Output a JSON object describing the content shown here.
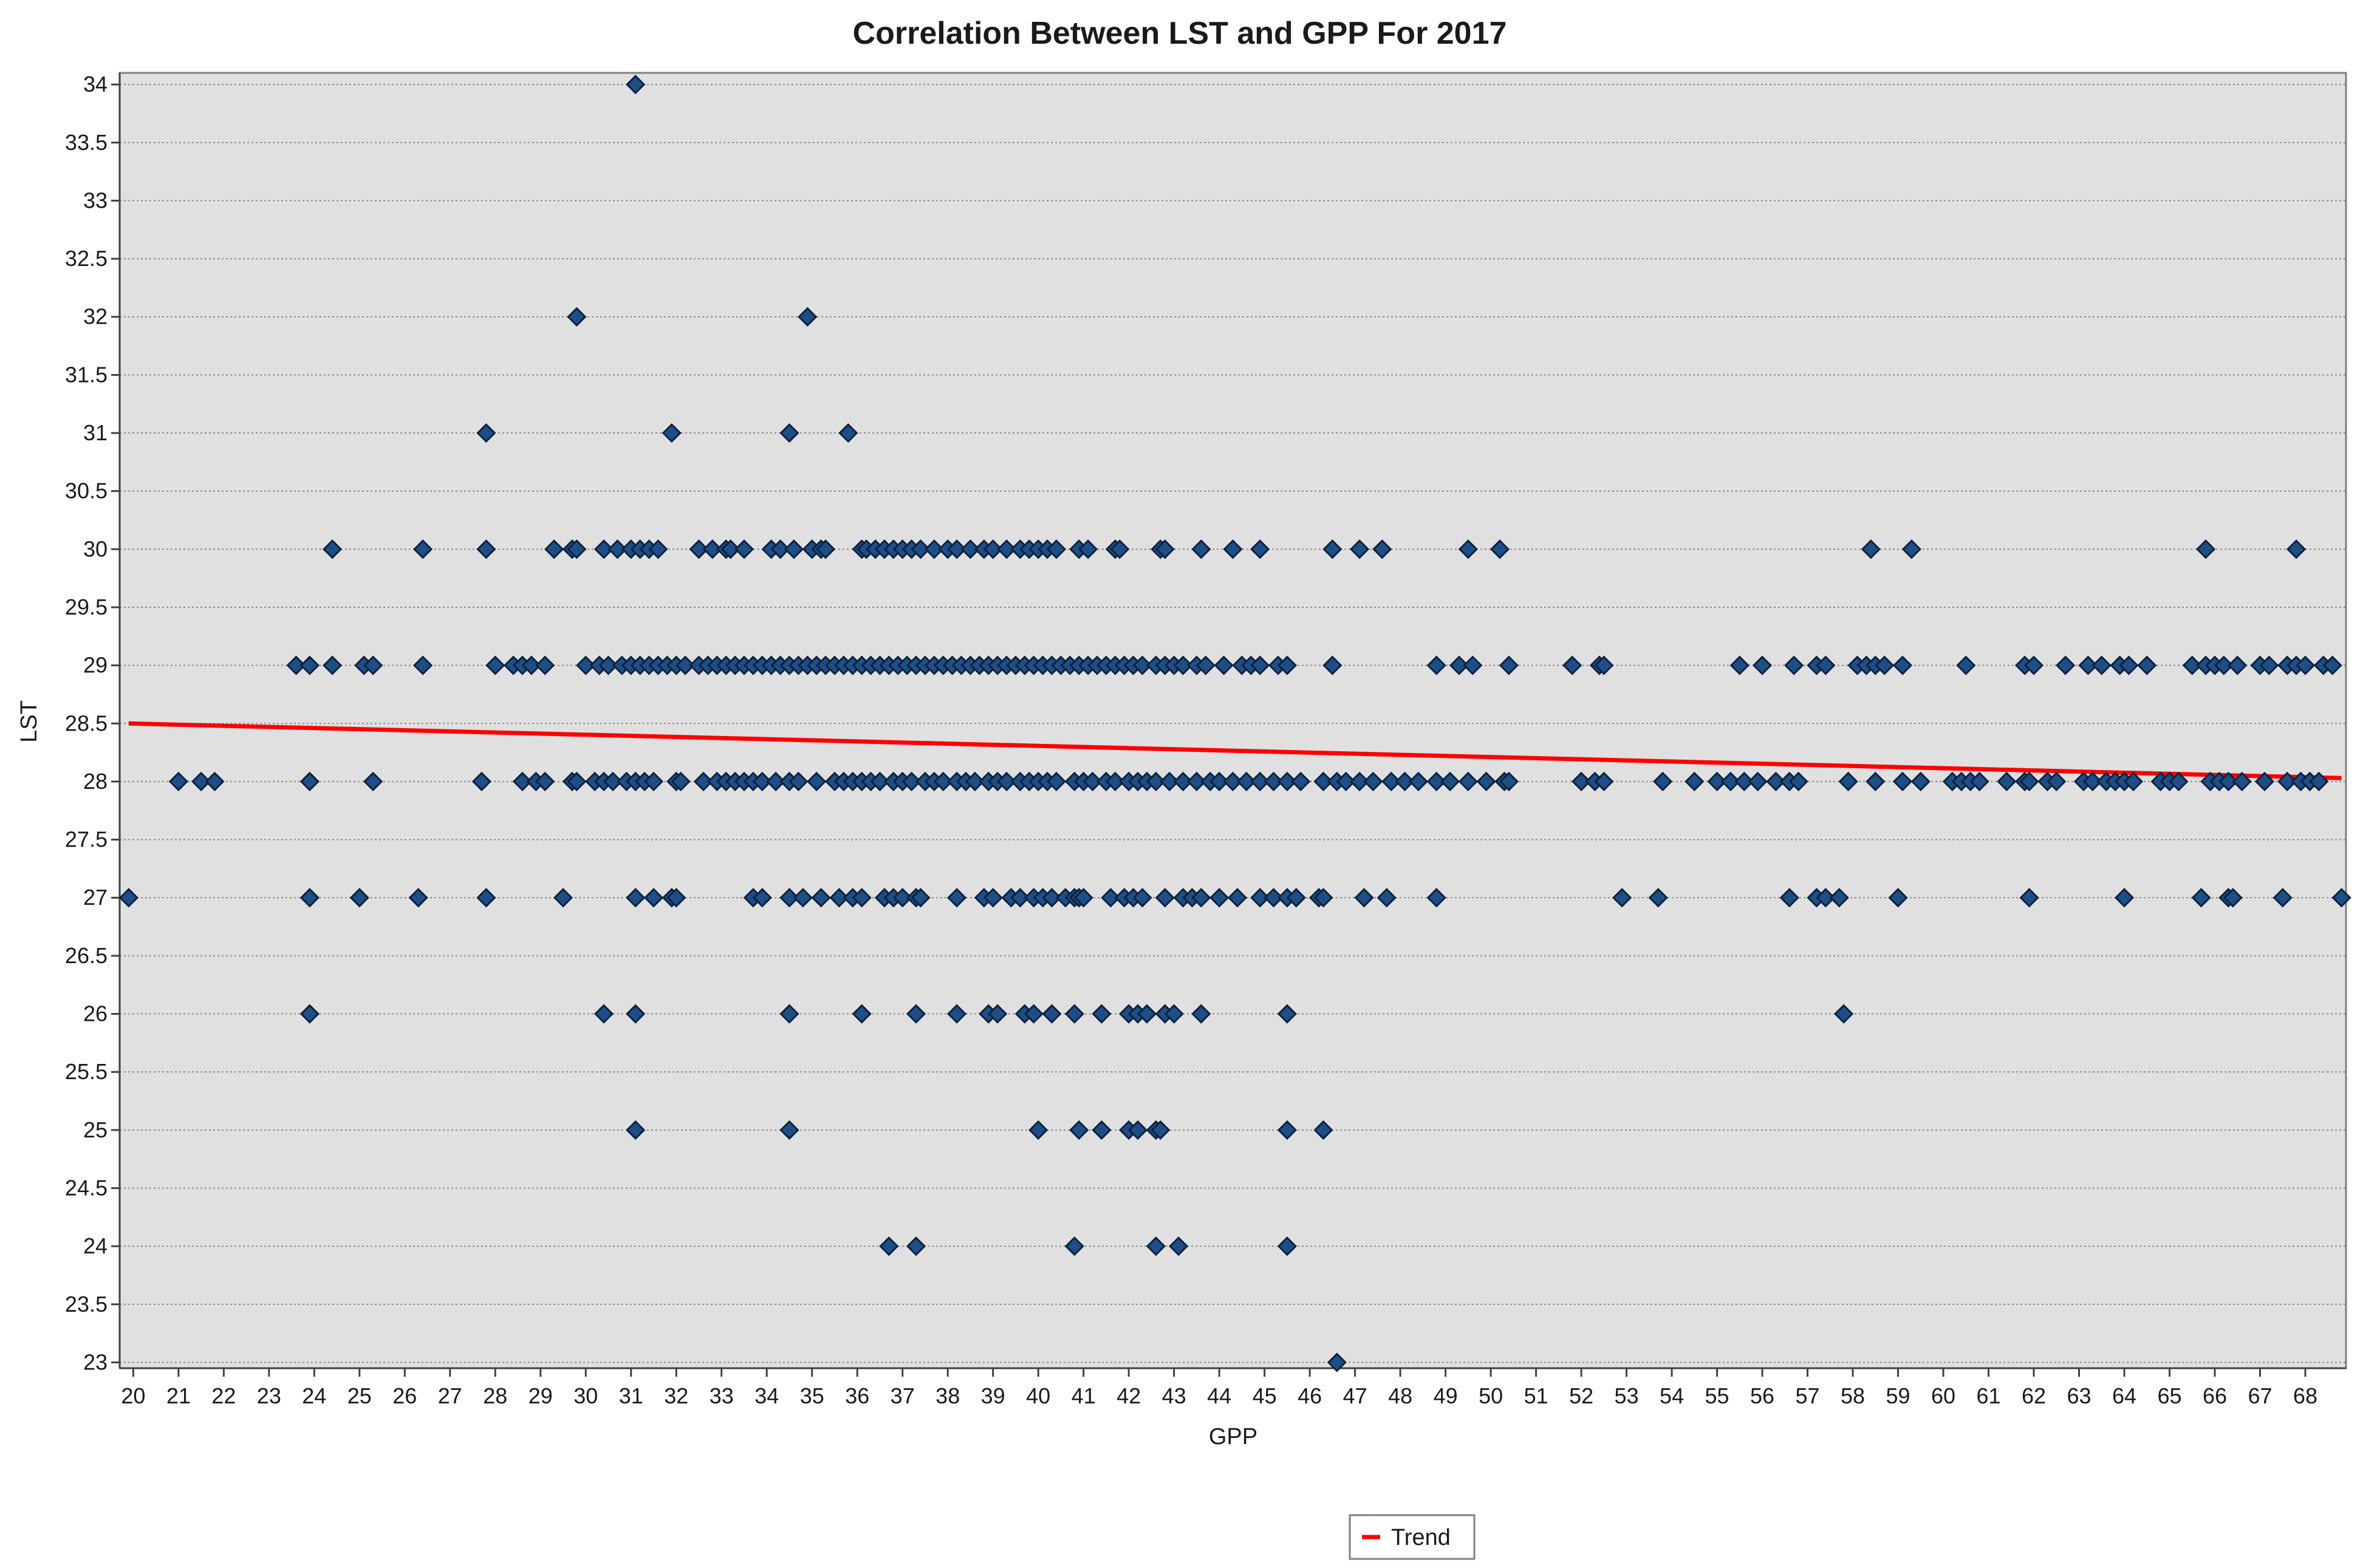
{
  "chart_data": {
    "type": "scatter",
    "title": "Correlation Between LST and GPP For 2017",
    "xlabel": "GPP",
    "ylabel": "LST",
    "xlim": [
      19.7,
      68.9
    ],
    "ylim": [
      22.95,
      34.1
    ],
    "grid": "horizontal dashed",
    "legend_position": "bottom-center",
    "x_ticks": [
      20,
      21,
      22,
      23,
      24,
      25,
      26,
      27,
      28,
      29,
      30,
      31,
      32,
      33,
      34,
      35,
      36,
      37,
      38,
      39,
      40,
      41,
      42,
      43,
      44,
      45,
      46,
      47,
      48,
      49,
      50,
      51,
      52,
      53,
      54,
      55,
      56,
      57,
      58,
      59,
      60,
      61,
      62,
      63,
      64,
      65,
      66,
      67,
      68
    ],
    "y_ticks": [
      "23",
      "23.5",
      "24",
      "24.5",
      "25",
      "25.5",
      "26",
      "26.5",
      "27",
      "27.5",
      "28",
      "28.5",
      "29",
      "29.5",
      "30",
      "30.5",
      "31",
      "31.5",
      "32",
      "32.5",
      "33",
      "33.5",
      "34"
    ],
    "marker_color": "#1f4e86",
    "marker_edge": "#0b2240",
    "plot_background": "#e0e0e0",
    "trend_color": "#ff0000",
    "series": [
      {
        "kind": "scatter",
        "values_by_lst": {
          "34": [
            31.1
          ],
          "32": [
            29.8,
            34.9
          ],
          "31": [
            27.8,
            31.9,
            34.5,
            35.8
          ],
          "30": [
            24.4,
            26.4,
            27.8,
            29.3,
            29.7,
            29.8,
            30.4,
            30.7,
            31.0,
            31.2,
            31.4,
            31.6,
            32.5,
            32.8,
            33.1,
            33.2,
            33.5,
            34.1,
            34.3,
            34.6,
            35.0,
            35.2,
            35.3,
            36.1,
            36.2,
            36.4,
            36.6,
            36.8,
            37.0,
            37.2,
            37.4,
            37.7,
            38.0,
            38.2,
            38.5,
            38.8,
            39.0,
            39.3,
            39.6,
            39.8,
            40.0,
            40.2,
            40.4,
            40.9,
            41.1,
            41.7,
            41.8,
            42.7,
            42.8,
            43.6,
            44.3,
            44.9,
            46.5,
            47.1,
            47.6,
            49.5,
            50.2,
            58.4,
            59.3,
            65.8,
            67.8
          ],
          "29": [
            23.6,
            23.9,
            24.4,
            25.1,
            25.3,
            26.4,
            28.0,
            28.4,
            28.6,
            28.8,
            29.1,
            30.0,
            30.3,
            30.5,
            30.8,
            31.0,
            31.2,
            31.4,
            31.6,
            31.8,
            32.0,
            32.2,
            32.5,
            32.7,
            32.9,
            33.1,
            33.3,
            33.5,
            33.7,
            33.9,
            34.1,
            34.3,
            34.5,
            34.7,
            34.9,
            35.1,
            35.3,
            35.5,
            35.7,
            35.9,
            36.1,
            36.3,
            36.5,
            36.7,
            36.9,
            37.1,
            37.3,
            37.5,
            37.7,
            37.9,
            38.1,
            38.3,
            38.5,
            38.7,
            38.9,
            39.1,
            39.3,
            39.5,
            39.7,
            39.9,
            40.1,
            40.3,
            40.5,
            40.7,
            40.9,
            41.1,
            41.3,
            41.5,
            41.7,
            41.9,
            42.1,
            42.3,
            42.6,
            42.8,
            43.0,
            43.2,
            43.5,
            43.7,
            44.1,
            44.5,
            44.7,
            44.9,
            45.3,
            45.5,
            46.5,
            48.8,
            49.3,
            49.6,
            50.4,
            51.8,
            52.4,
            52.5,
            55.5,
            56.0,
            56.7,
            57.2,
            57.4,
            58.1,
            58.3,
            58.5,
            58.7,
            59.1,
            60.5,
            61.8,
            62.0,
            62.7,
            63.2,
            63.5,
            63.9,
            64.1,
            64.5,
            65.5,
            65.8,
            66.0,
            66.2,
            66.5,
            67.0,
            67.2,
            67.6,
            67.8,
            68.0,
            68.4,
            68.6
          ],
          "28": [
            21.0,
            21.5,
            21.8,
            23.9,
            25.3,
            27.7,
            28.6,
            28.9,
            29.1,
            29.7,
            29.8,
            30.2,
            30.4,
            30.6,
            30.9,
            31.1,
            31.3,
            31.5,
            32.0,
            32.1,
            32.6,
            32.9,
            33.1,
            33.3,
            33.5,
            33.7,
            33.9,
            34.2,
            34.5,
            34.7,
            35.1,
            35.5,
            35.7,
            35.9,
            36.1,
            36.3,
            36.5,
            36.8,
            37.0,
            37.2,
            37.5,
            37.7,
            37.9,
            38.2,
            38.4,
            38.6,
            38.9,
            39.1,
            39.3,
            39.6,
            39.8,
            40.0,
            40.2,
            40.4,
            40.8,
            41.0,
            41.2,
            41.5,
            41.7,
            42.0,
            42.2,
            42.4,
            42.6,
            42.9,
            43.2,
            43.5,
            43.8,
            44.0,
            44.3,
            44.6,
            44.9,
            45.2,
            45.5,
            45.8,
            46.3,
            46.6,
            46.8,
            47.1,
            47.4,
            47.8,
            48.1,
            48.4,
            48.8,
            49.1,
            49.5,
            49.9,
            50.3,
            50.4,
            52.0,
            52.3,
            52.5,
            53.8,
            54.5,
            55.0,
            55.3,
            55.6,
            55.9,
            56.3,
            56.6,
            56.8,
            57.9,
            58.5,
            59.1,
            59.5,
            60.2,
            60.4,
            60.6,
            60.8,
            61.4,
            61.8,
            61.9,
            62.3,
            62.5,
            63.1,
            63.3,
            63.6,
            63.8,
            64.0,
            64.2,
            64.8,
            65.0,
            65.2,
            65.9,
            66.1,
            66.3,
            66.6,
            67.1,
            67.6,
            67.9,
            68.1,
            68.3
          ],
          "27": [
            19.9,
            23.9,
            25.0,
            26.3,
            27.8,
            29.5,
            31.1,
            31.5,
            31.9,
            32.0,
            33.7,
            33.9,
            34.5,
            34.8,
            35.2,
            35.6,
            35.9,
            36.1,
            36.6,
            36.8,
            37.0,
            37.3,
            37.4,
            38.2,
            38.8,
            39.0,
            39.4,
            39.6,
            39.9,
            40.1,
            40.3,
            40.6,
            40.8,
            40.9,
            41.0,
            41.6,
            41.9,
            42.1,
            42.3,
            42.8,
            43.2,
            43.4,
            43.6,
            44.0,
            44.4,
            44.9,
            45.2,
            45.5,
            45.7,
            46.2,
            46.3,
            47.2,
            47.7,
            48.8,
            52.9,
            53.7,
            56.6,
            57.2,
            57.4,
            57.7,
            59.0,
            61.9,
            64.0,
            65.7,
            66.3,
            66.4,
            67.5,
            68.8
          ],
          "26": [
            23.9,
            30.4,
            31.1,
            34.5,
            36.1,
            37.3,
            38.2,
            38.9,
            39.1,
            39.7,
            39.9,
            40.3,
            40.8,
            41.4,
            42.0,
            42.2,
            42.4,
            42.8,
            43.0,
            43.6,
            45.5,
            57.8
          ],
          "25": [
            31.1,
            34.5,
            40.0,
            40.9,
            41.4,
            42.0,
            42.2,
            42.6,
            42.7,
            45.5,
            46.3
          ],
          "24": [
            36.7,
            37.3,
            40.8,
            42.6,
            43.1,
            45.5
          ],
          "23": [
            46.6
          ]
        }
      }
    ],
    "trend": {
      "name": "Trend",
      "x": [
        19.9,
        68.8
      ],
      "y": [
        28.5,
        28.03
      ]
    }
  }
}
